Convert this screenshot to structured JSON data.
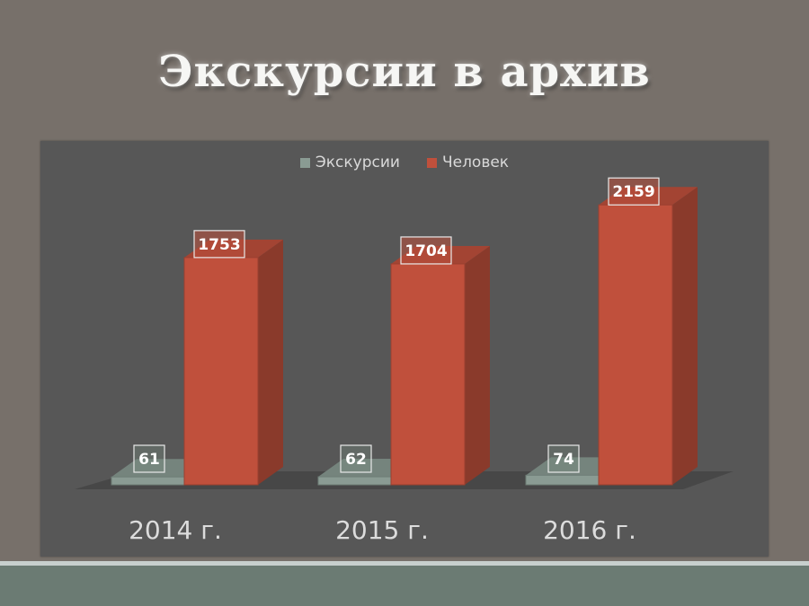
{
  "slide": {
    "title": "Экскурсии в архив"
  },
  "colors": {
    "background": "#77706a",
    "panel": "#575757",
    "excursions": "#8a9b93",
    "people": "#c0503c"
  },
  "chart_data": {
    "type": "bar",
    "categories": [
      "2014 г.",
      "2015 г.",
      "2016 г."
    ],
    "series": [
      {
        "name": "Экскурсии",
        "values": [
          61,
          62,
          74
        ]
      },
      {
        "name": "Человек",
        "values": [
          1753,
          1704,
          2159
        ]
      }
    ],
    "ylim": [
      0,
      2500
    ],
    "grid": false,
    "legend_position": "top-center",
    "data_labels": true,
    "style": "3d"
  }
}
